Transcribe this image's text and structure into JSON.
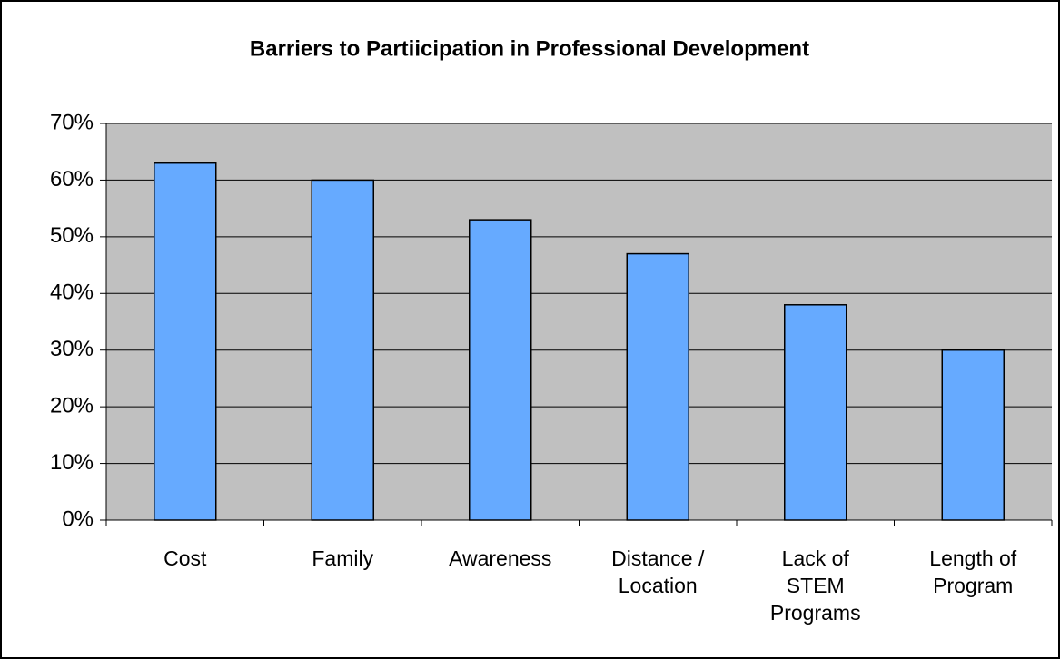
{
  "chart_data": {
    "type": "bar",
    "title": "Barriers to Partiicipation in Professional Development",
    "categories": [
      "Cost",
      "Family",
      "Awareness",
      "Distance / Location",
      "Lack of STEM Programs",
      "Length of Program"
    ],
    "values": [
      63,
      60,
      53,
      47,
      38,
      30
    ],
    "color": "#66aaff",
    "ylim": [
      0,
      70
    ],
    "yticks": [
      {
        "value": 0,
        "label": "0%"
      },
      {
        "value": 10,
        "label": "10%"
      },
      {
        "value": 20,
        "label": "20%"
      },
      {
        "value": 30,
        "label": "30%"
      },
      {
        "value": 40,
        "label": "40%"
      },
      {
        "value": 50,
        "label": "50%"
      },
      {
        "value": 60,
        "label": "60%"
      },
      {
        "value": 70,
        "label": "70%"
      }
    ],
    "grid": true
  }
}
